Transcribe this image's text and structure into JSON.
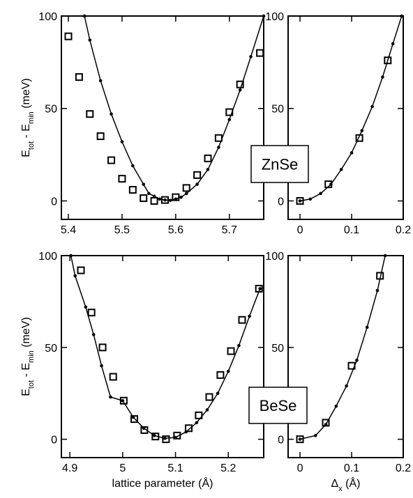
{
  "chart_data": [
    {
      "type": "line",
      "ylabel": [
        {
          "text": "E"
        },
        {
          "text": "tot",
          "sub": true
        },
        {
          "text": " - E"
        },
        {
          "text": "min",
          "sub": true
        },
        {
          "text": " (meV)"
        }
      ],
      "xlim": [
        5.387,
        5.764
      ],
      "xticks": [
        5.4,
        5.5,
        5.6,
        5.7
      ],
      "ylim": [
        -10,
        100
      ],
      "yticks": [
        0,
        50,
        100
      ],
      "series": [
        {
          "color": "#000000",
          "marker": "square",
          "x": [
            5.4,
            5.42,
            5.44,
            5.46,
            5.48,
            5.5,
            5.52,
            5.54,
            5.56,
            5.58,
            5.6,
            5.62,
            5.64,
            5.66,
            5.68,
            5.7,
            5.72,
            5.757
          ],
          "values": [
            89,
            67,
            47,
            35,
            22,
            12,
            6,
            1.5,
            0,
            0.5,
            2,
            7,
            14,
            23,
            34,
            48,
            63,
            80
          ]
        },
        {
          "color": "#000000",
          "marker": "dot",
          "line": true,
          "x": [
            5.43,
            5.44,
            5.46,
            5.48,
            5.5,
            5.52,
            5.54,
            5.55,
            5.56,
            5.57,
            5.58,
            5.59,
            5.6,
            5.61,
            5.62,
            5.64,
            5.66,
            5.68,
            5.7,
            5.72,
            5.74,
            5.764
          ],
          "values": [
            100,
            87,
            65,
            47,
            32,
            19,
            9,
            4,
            2.5,
            1,
            0.5,
            0.3,
            1,
            2,
            4,
            9,
            17,
            29,
            44,
            60,
            78,
            100
          ]
        }
      ]
    },
    {
      "type": "line",
      "annotation": "ZnSe",
      "xlim": [
        -0.023,
        0.2
      ],
      "xticks": [
        0,
        0.1,
        0.2
      ],
      "ylim": [
        -10,
        100
      ],
      "yticks": [
        0,
        50,
        100
      ],
      "series": [
        {
          "color": "#000000",
          "marker": "square",
          "x": [
            0,
            0.055,
            0.115,
            0.17
          ],
          "values": [
            0,
            9,
            34,
            76
          ]
        },
        {
          "color": "#000000",
          "marker": "dot",
          "line": true,
          "x": [
            0,
            0.02,
            0.04,
            0.06,
            0.08,
            0.1,
            0.12,
            0.14,
            0.16,
            0.18,
            0.197
          ],
          "values": [
            0,
            1,
            4,
            9,
            17,
            26,
            38,
            51,
            67,
            85,
            100
          ]
        }
      ]
    },
    {
      "type": "line",
      "ylabel": [
        {
          "text": "E"
        },
        {
          "text": "tot",
          "sub": true
        },
        {
          "text": " - E"
        },
        {
          "text": "min",
          "sub": true
        },
        {
          "text": " (meV)"
        }
      ],
      "xlabel": [
        {
          "text": "lattice parameter (Å)"
        }
      ],
      "xlim": [
        4.884,
        5.267
      ],
      "xticks": [
        4.9,
        5,
        5.1,
        5.2
      ],
      "ylim": [
        -10,
        100
      ],
      "yticks": [
        0,
        50,
        100
      ],
      "series": [
        {
          "color": "#000000",
          "marker": "square",
          "x": [
            4.921,
            4.941,
            4.962,
            4.982,
            5.002,
            5.022,
            5.041,
            5.062,
            5.082,
            5.103,
            5.125,
            5.144,
            5.164,
            5.185,
            5.205,
            5.226,
            5.258
          ],
          "values": [
            92,
            69,
            50,
            34,
            21,
            11,
            5,
            1.5,
            0,
            2,
            6,
            13,
            23,
            35,
            48,
            65,
            82
          ]
        },
        {
          "color": "#000000",
          "marker": "dot",
          "line": true,
          "x": [
            4.902,
            4.91,
            4.93,
            4.945,
            4.96,
            4.977,
            5.0,
            5.02,
            5.04,
            5.06,
            5.08,
            5.1,
            5.12,
            5.14,
            5.16,
            5.18,
            5.2,
            5.22,
            5.24,
            5.26
          ],
          "values": [
            100,
            89,
            72,
            57,
            40,
            23,
            21,
            12,
            6,
            2,
            0.5,
            1,
            4,
            9,
            16,
            25,
            37,
            51,
            67,
            82
          ]
        }
      ]
    },
    {
      "type": "line",
      "annotation": "BeSe",
      "xlabel": [
        {
          "text": "Δ"
        },
        {
          "text": "x",
          "sub": true
        },
        {
          "text": " (Å)"
        }
      ],
      "xlim": [
        -0.023,
        0.2
      ],
      "xticks": [
        0,
        0.1,
        0.2
      ],
      "ylim": [
        -10,
        100
      ],
      "yticks": [
        0,
        50,
        100
      ],
      "series": [
        {
          "color": "#000000",
          "marker": "square",
          "x": [
            0,
            0.05,
            0.1,
            0.155
          ],
          "values": [
            0,
            9,
            40,
            89
          ]
        },
        {
          "color": "#000000",
          "marker": "dot",
          "line": true,
          "x": [
            0,
            0.03,
            0.05,
            0.07,
            0.09,
            0.11,
            0.13,
            0.15,
            0.165
          ],
          "values": [
            0,
            2,
            8,
            18,
            29,
            43,
            61,
            81,
            100
          ]
        }
      ]
    }
  ]
}
